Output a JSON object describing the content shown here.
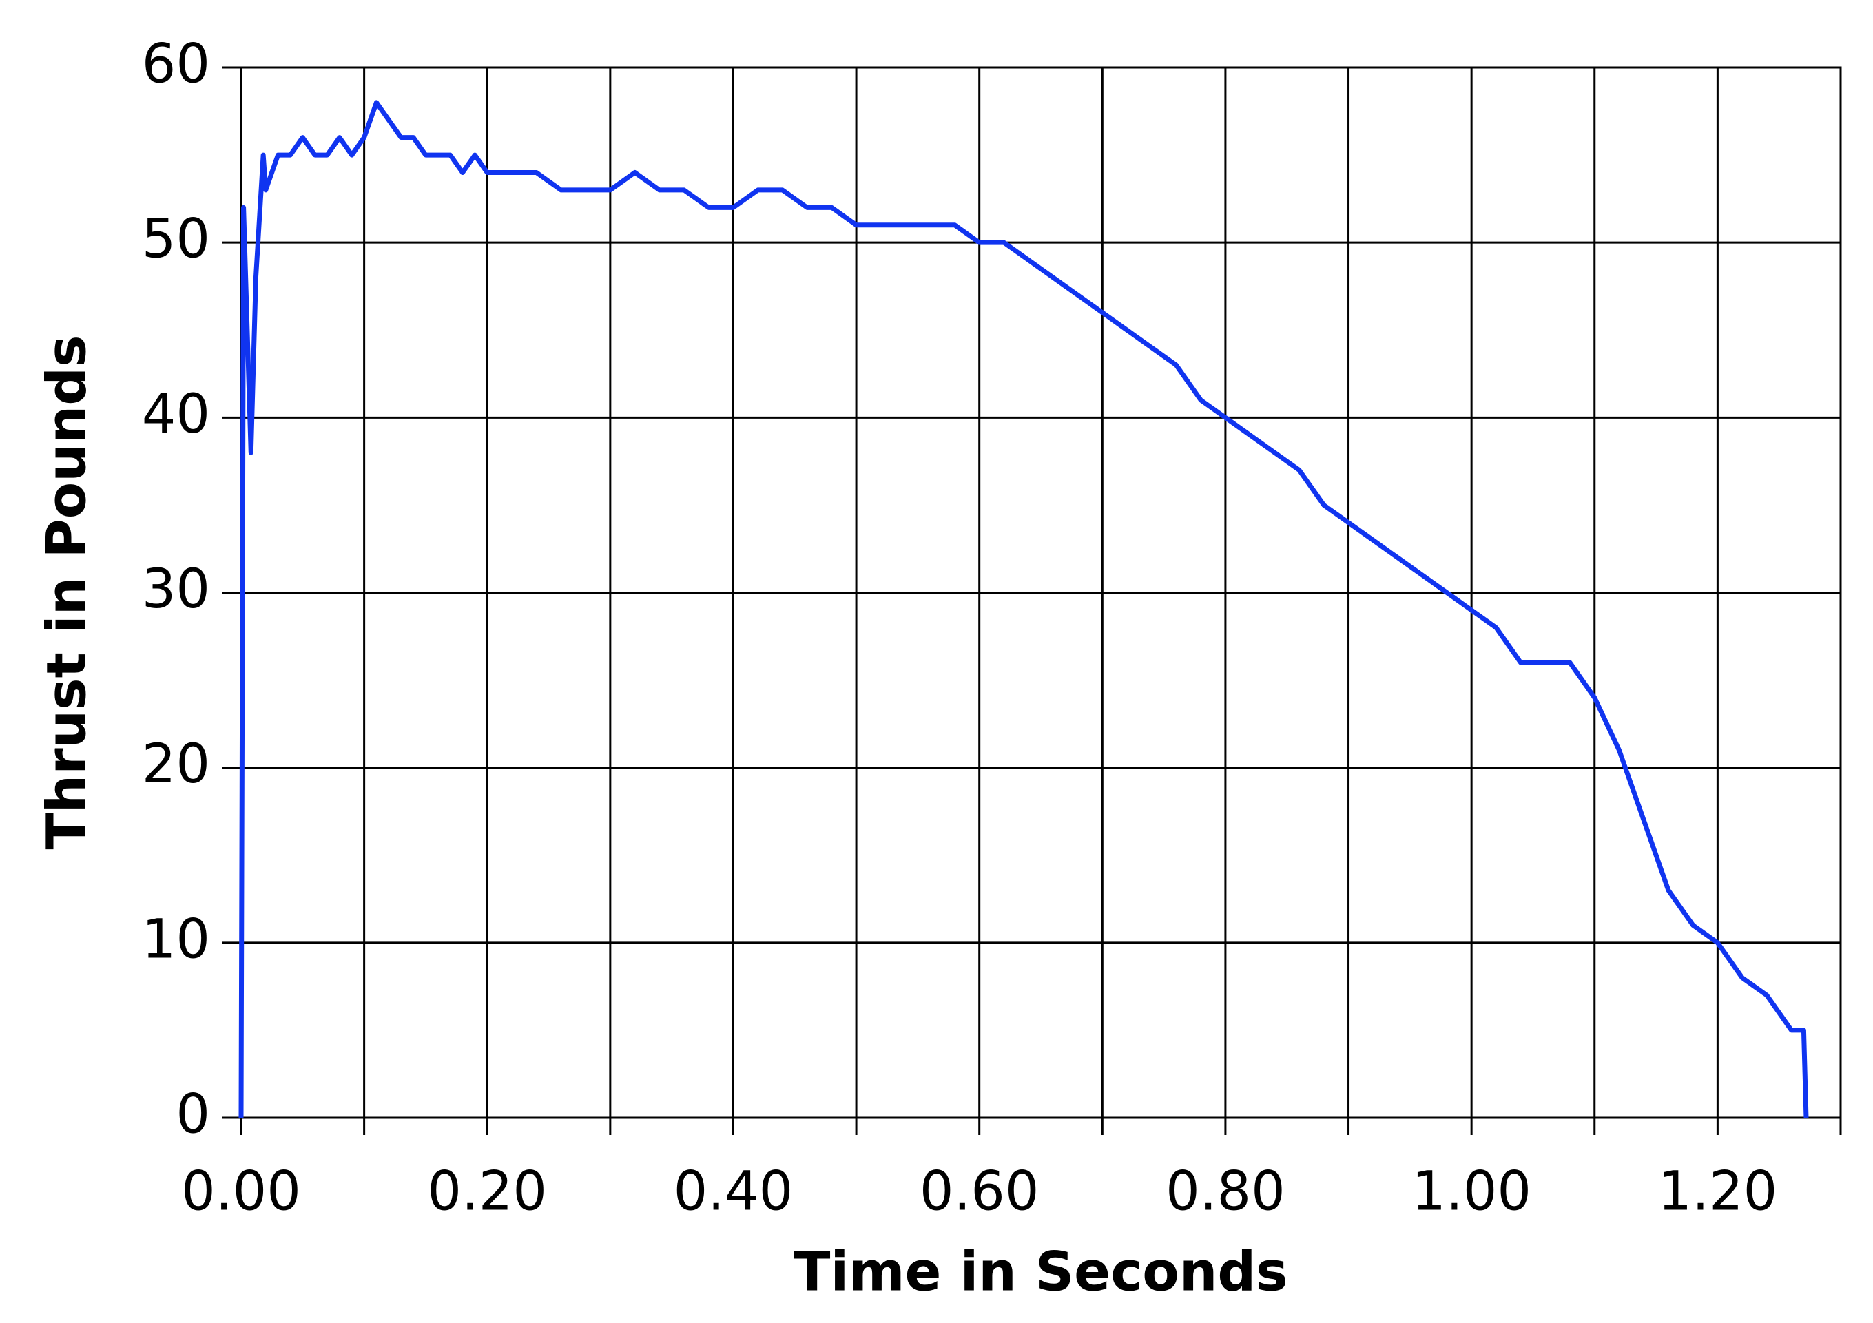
{
  "chart_data": {
    "type": "line",
    "x_label": "Time in Seconds",
    "y_label": "Thrust in Pounds",
    "x": [
      0,
      0.002,
      0.005,
      0.008,
      0.012,
      0.018,
      0.02,
      0.03,
      0.04,
      0.05,
      0.06,
      0.07,
      0.08,
      0.09,
      0.1,
      0.11,
      0.12,
      0.13,
      0.14,
      0.15,
      0.16,
      0.17,
      0.18,
      0.19,
      0.2,
      0.22,
      0.24,
      0.26,
      0.28,
      0.3,
      0.32,
      0.34,
      0.36,
      0.38,
      0.4,
      0.42,
      0.44,
      0.46,
      0.48,
      0.5,
      0.52,
      0.54,
      0.56,
      0.58,
      0.6,
      0.62,
      0.64,
      0.66,
      0.68,
      0.7,
      0.72,
      0.74,
      0.76,
      0.78,
      0.8,
      0.82,
      0.84,
      0.86,
      0.88,
      0.9,
      0.92,
      0.94,
      0.96,
      0.98,
      1.0,
      1.02,
      1.04,
      1.06,
      1.08,
      1.1,
      1.12,
      1.14,
      1.16,
      1.18,
      1.2,
      1.22,
      1.24,
      1.26,
      1.27,
      1.272
    ],
    "series": [
      {
        "name": "Thrust",
        "color": "#1034f0",
        "values": [
          0,
          52,
          45,
          38,
          48,
          55,
          53,
          55,
          55,
          56,
          55,
          55,
          56,
          55,
          56,
          58,
          57,
          56,
          56,
          55,
          55,
          55,
          54,
          55,
          54,
          54,
          54,
          53,
          53,
          53,
          54,
          53,
          53,
          52,
          52,
          53,
          53,
          52,
          52,
          51,
          51,
          51,
          51,
          51,
          50,
          50,
          49,
          48,
          47,
          46,
          45,
          44,
          43,
          41,
          40,
          39,
          38,
          37,
          35,
          34,
          33,
          32,
          31,
          30,
          29,
          28,
          26,
          26,
          26,
          24,
          21,
          17,
          13,
          11,
          10,
          8,
          7,
          5,
          5,
          0
        ]
      }
    ],
    "xlim": [
      0,
      1.3
    ],
    "xticks": [
      {
        "value": 0,
        "label": "0.00"
      },
      {
        "value": 0.1,
        "label": null
      },
      {
        "value": 0.2,
        "label": "0.20"
      },
      {
        "value": 0.3,
        "label": null
      },
      {
        "value": 0.4,
        "label": "0.40"
      },
      {
        "value": 0.5,
        "label": null
      },
      {
        "value": 0.6,
        "label": "0.60"
      },
      {
        "value": 0.7,
        "label": null
      },
      {
        "value": 0.8,
        "label": "0.80"
      },
      {
        "value": 0.9,
        "label": null
      },
      {
        "value": 1.0,
        "label": "1.00"
      },
      {
        "value": 1.1,
        "label": null
      },
      {
        "value": 1.2,
        "label": "1.20"
      },
      {
        "value": 1.3,
        "label": null
      }
    ],
    "ylim": [
      0,
      60
    ],
    "yticks": [
      0,
      10,
      20,
      30,
      40,
      50,
      60
    ],
    "grid": true
  }
}
